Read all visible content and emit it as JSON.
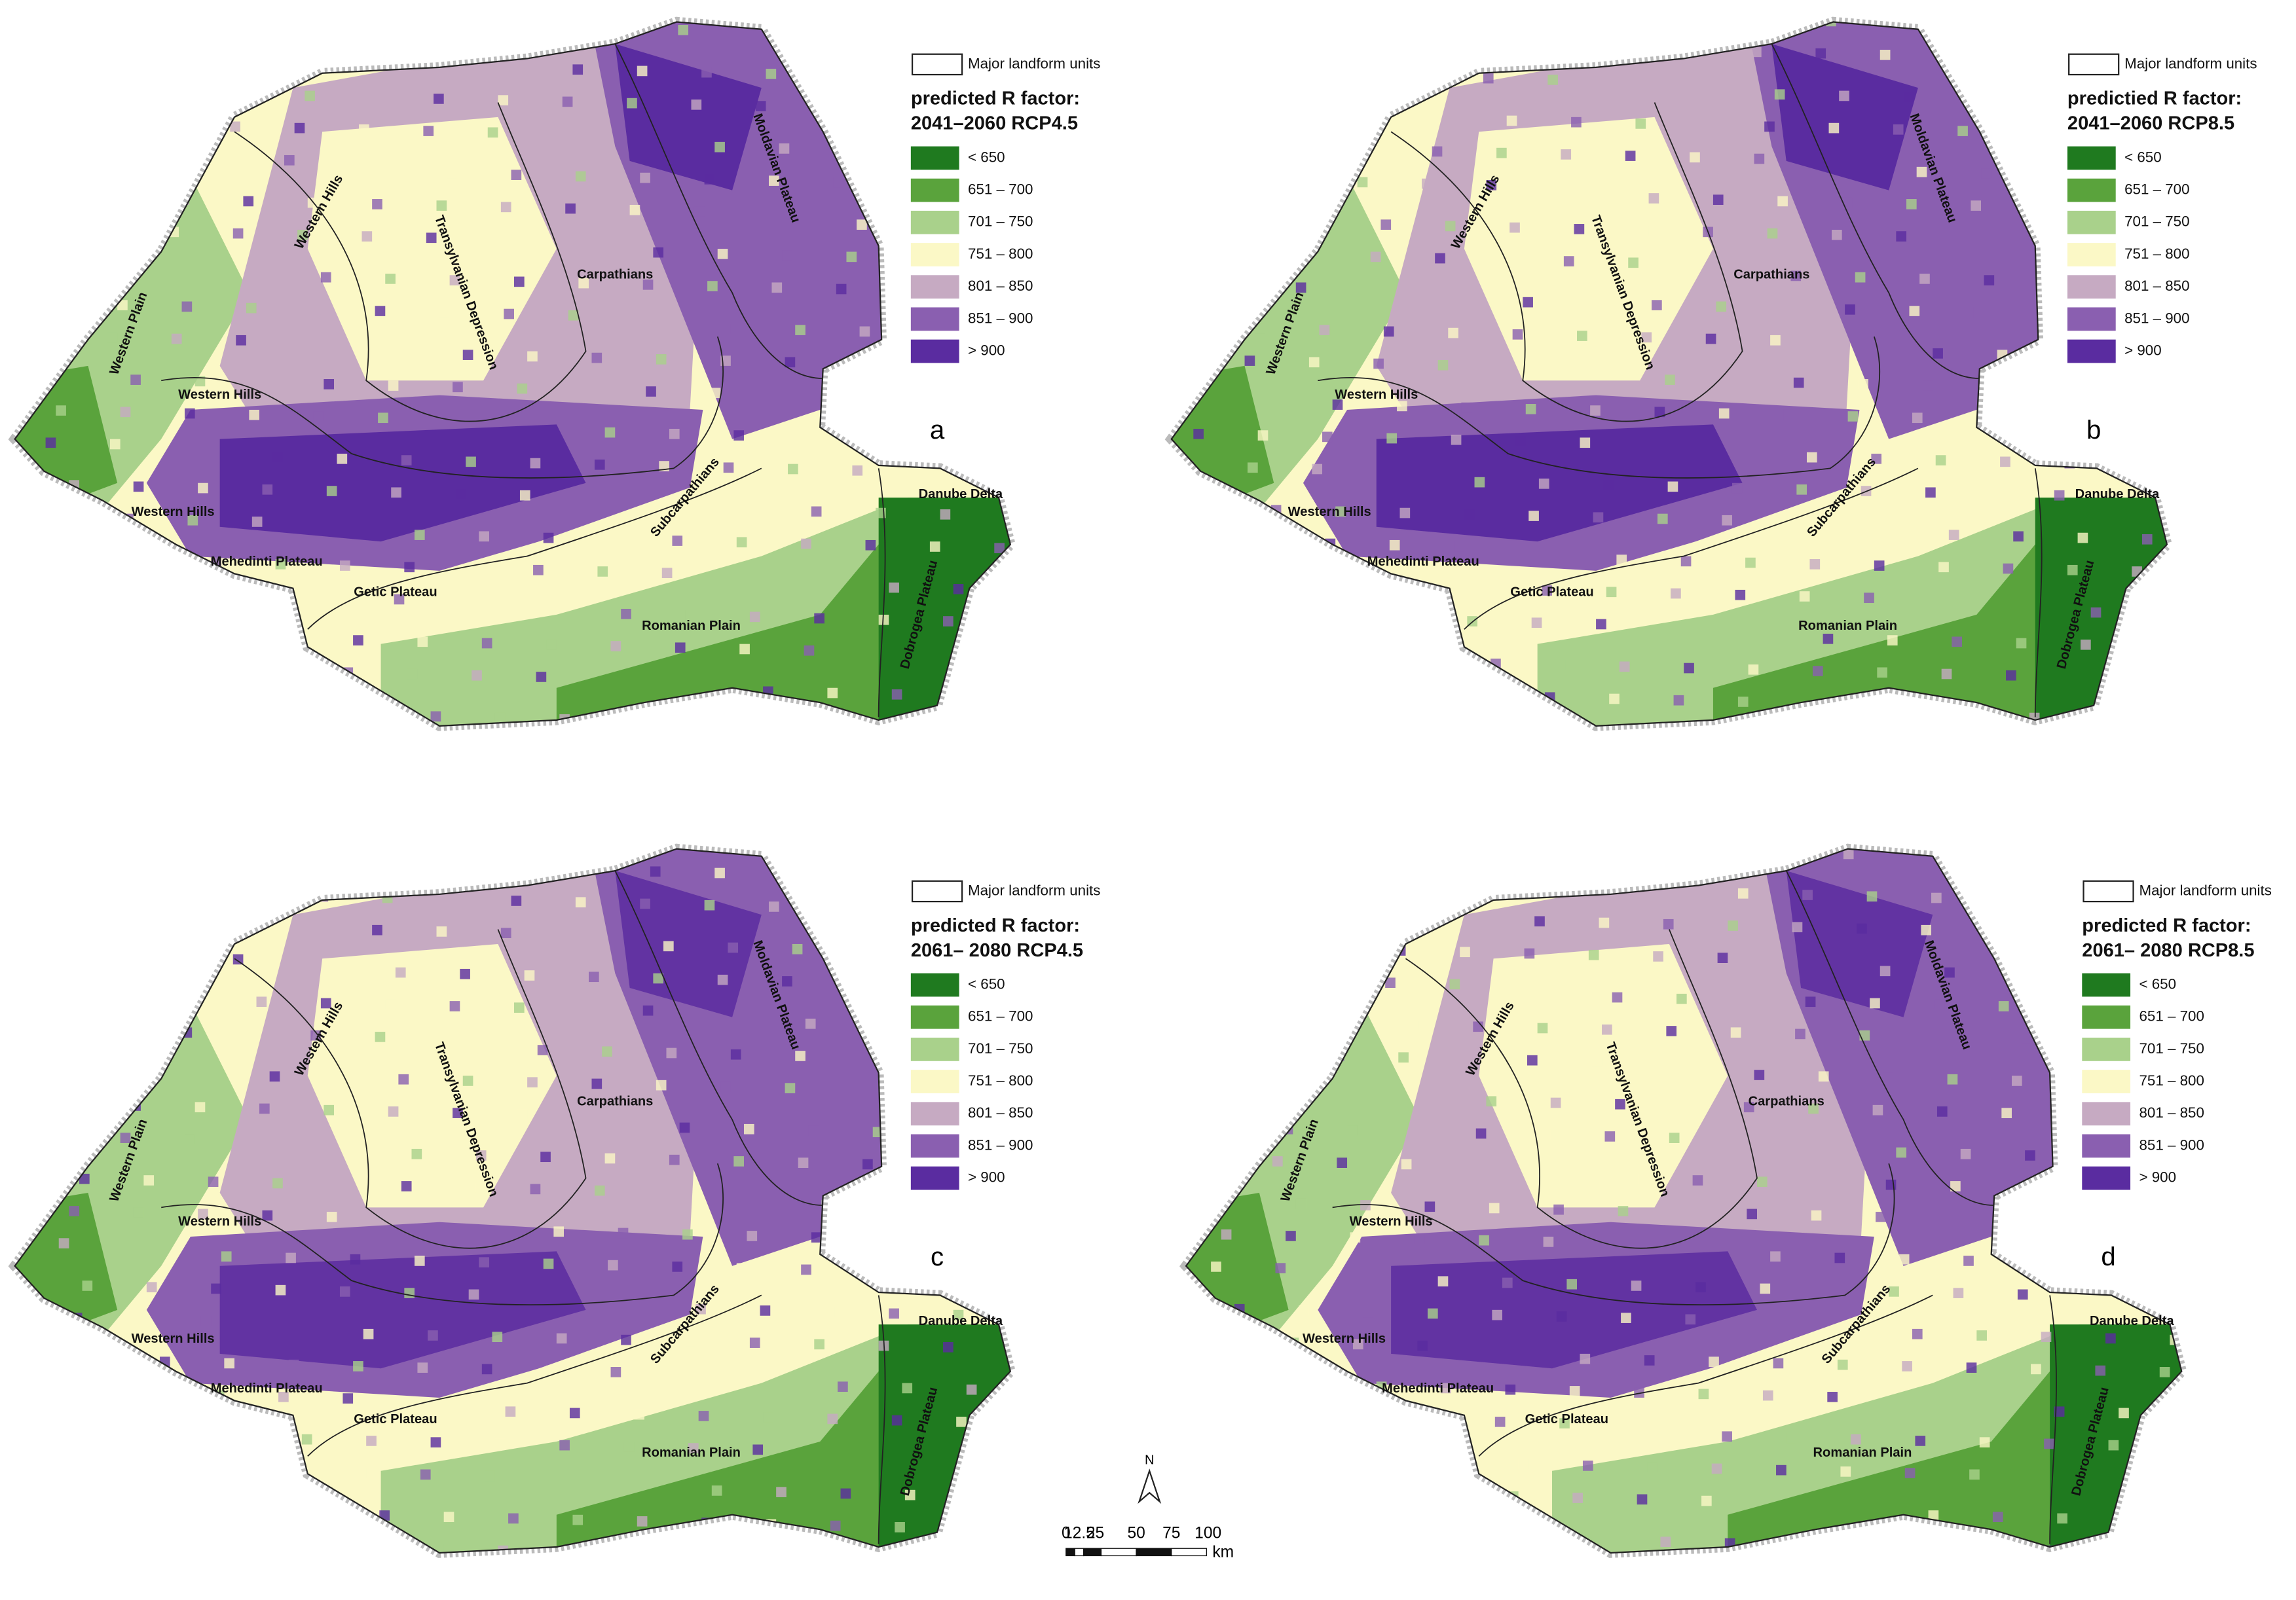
{
  "class_colors": [
    "#1f7a1f",
    "#5aa33c",
    "#a9d18b",
    "#fbf8c6",
    "#c6aac2",
    "#8a5fb0",
    "#5a2ca0"
  ],
  "panels": [
    {
      "letter": "a",
      "legend_header": "Major landform units",
      "legend_title": [
        "predicted R factor:",
        "2041–2060 RCP4.5"
      ],
      "classes": [
        "< 650",
        "651 – 700",
        "701 – 750",
        "751 – 800",
        "801 – 850",
        "851 – 900",
        "> 900"
      ],
      "regions": [
        "Western Hills",
        "Transylvanian Depression",
        "Carpathians",
        "Moldavian Plateau",
        "Western Plain",
        "Western Hills",
        "Western Hills",
        "Subcarpathians",
        "Danube Delta",
        "Mehedinti Plateau",
        "Getic Plateau",
        "Romanian Plain",
        "Dobrogea Plateau"
      ]
    },
    {
      "letter": "b",
      "legend_header": "Major landform units",
      "legend_title": [
        "predictied R factor:",
        "2041–2060 RCP8.5"
      ],
      "classes": [
        "< 650",
        "651 – 700",
        "701 – 750",
        "751 – 800",
        "801 – 850",
        "851 – 900",
        "> 900"
      ],
      "regions": [
        "Western Hills",
        "Transylvanian Depression",
        "Carpathians",
        "Moldavian Plateau",
        "Western Plain",
        "Western Hills",
        "Western Hills",
        "Subcarpathians",
        "Danube Delta",
        "Mehedinti Plateau",
        "Getic Plateau",
        "Romanian Plain",
        "Dobrogea Plateau"
      ]
    },
    {
      "letter": "c",
      "legend_header": "Major landform units",
      "legend_title": [
        "predicted R factor:",
        "2061– 2080 RCP4.5"
      ],
      "classes": [
        "< 650",
        "651 – 700",
        "701 – 750",
        "751 – 800",
        "801 – 850",
        "851 – 900",
        "> 900"
      ],
      "regions": [
        "Western Hills",
        "Transylvanian Depression",
        "Carpathians",
        "Moldavian Plateau",
        "Western Plain",
        "Western Hills",
        "Western Hills",
        "Subcarpathians",
        "Danube Delta",
        "Mehedinti Plateau",
        "Getic Plateau",
        "Romanian Plain",
        "Dobrogea Plateau"
      ]
    },
    {
      "letter": "d",
      "legend_header": "Major landform units",
      "legend_title": [
        "predicted R factor:",
        "2061– 2080 RCP8.5"
      ],
      "classes": [
        "< 650",
        "651 – 700",
        "701 – 750",
        "751 – 800",
        "801 – 850",
        "851 – 900",
        "> 900"
      ],
      "regions": [
        "Western Hills",
        "Transylvanian Depression",
        "Carpathians",
        "Moldavian Plateau",
        "Western Plain",
        "Western Hills",
        "Western Hills",
        "Subcarpathians",
        "Danube Delta",
        "Mehedinti Plateau",
        "Getic Plateau",
        "Romanian Plain",
        "Dobrogea Plateau"
      ]
    }
  ],
  "scale_bar": {
    "north": "N",
    "labels": [
      "0",
      "12.5",
      "25",
      "50",
      "75",
      "100"
    ],
    "unit": "km"
  }
}
